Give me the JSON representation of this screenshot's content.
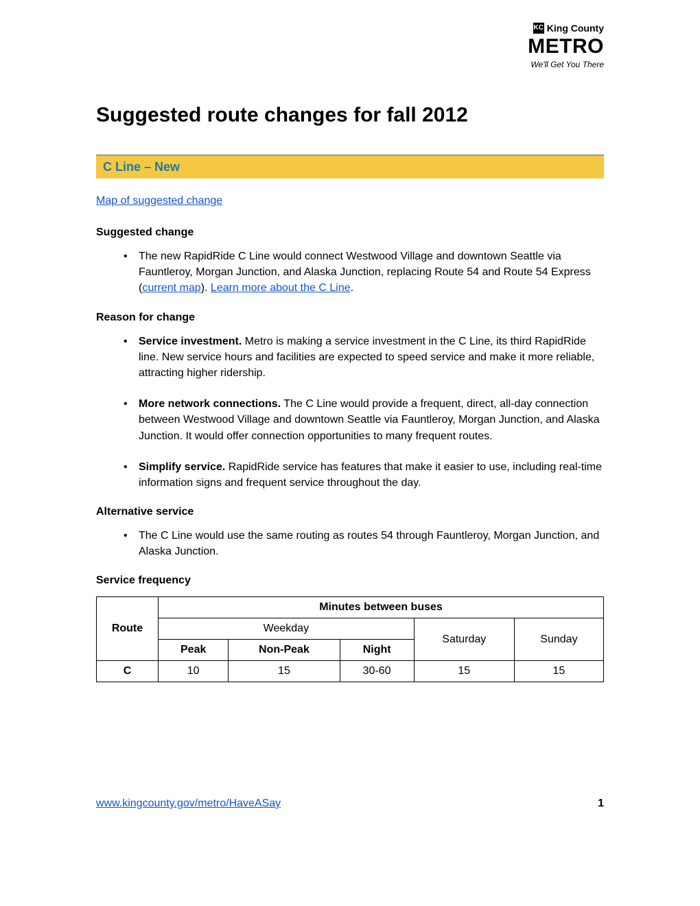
{
  "logo": {
    "kc_icon": "KC",
    "kc_text": "King County",
    "metro": "METRO",
    "tagline": "We'll Get You There"
  },
  "main_title": "Suggested route changes for fall 2012",
  "section": {
    "title": "C Line – New"
  },
  "map_link": "Map of suggested change",
  "suggested_change": {
    "heading": "Suggested change",
    "item_text_1": "The new RapidRide C Line would connect Westwood Village and downtown Seattle via Fauntleroy, Morgan Junction, and Alaska Junction, replacing Route 54 and Route 54 Express (",
    "link_1": "current map",
    "item_text_2": "). ",
    "link_2": "Learn more about the C Line",
    "item_text_3": "."
  },
  "reason": {
    "heading": "Reason for change",
    "items": [
      {
        "bold": "Service investment.",
        "text": " Metro is making a service investment in the C Line, its third RapidRide line. New service hours and facilities are expected to speed service and make it more reliable, attracting higher ridership."
      },
      {
        "bold": "More network connections.",
        "text": " The C Line would provide a frequent, direct, all-day connection between Westwood Village and downtown Seattle via Fauntleroy, Morgan Junction, and Alaska Junction. It would offer connection opportunities to many frequent routes."
      },
      {
        "bold": "Simplify service.",
        "text": " RapidRide service has features that make it easier to use, including real-time information signs and frequent service throughout the day."
      }
    ]
  },
  "alternative": {
    "heading": "Alternative service",
    "item": "The C Line would use the same routing as routes 54 through Fauntleroy, Morgan Junction, and Alaska Junction."
  },
  "frequency": {
    "heading": "Service frequency",
    "table": {
      "headers": {
        "route": "Route",
        "minutes": "Minutes between buses",
        "weekday": "Weekday",
        "saturday": "Saturday",
        "sunday": "Sunday",
        "peak": "Peak",
        "nonpeak": "Non-Peak",
        "night": "Night"
      },
      "row": {
        "route": "C",
        "peak": "10",
        "nonpeak": "15",
        "night": "30-60",
        "saturday": "15",
        "sunday": "15"
      }
    }
  },
  "footer": {
    "url": "www.kingcounty.gov/metro/HaveASay",
    "page": "1"
  },
  "colors": {
    "section_bg": "#f5c842",
    "section_text": "#1a7ba8",
    "link": "#1155cc"
  }
}
